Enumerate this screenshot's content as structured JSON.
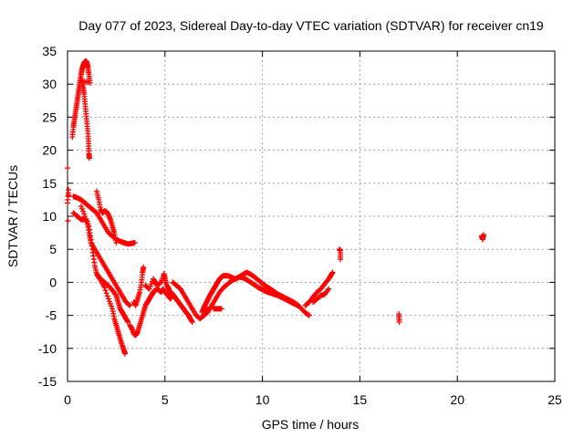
{
  "chart_data": {
    "type": "scatter",
    "title": "Day 077 of 2023, Sidereal Day-to-day VTEC variation (SDTVAR) for receiver cn19",
    "xlabel": "GPS time / hours",
    "ylabel": "SDTVAR / TECUs",
    "xlim": [
      0,
      25
    ],
    "ylim": [
      -15,
      35
    ],
    "xticks": [
      0,
      5,
      10,
      15,
      20,
      25
    ],
    "yticks": [
      -15,
      -10,
      -5,
      0,
      5,
      10,
      15,
      20,
      25,
      30,
      35
    ],
    "grid": true,
    "marker": "+",
    "color": "#ff0000",
    "series": [
      {
        "name": "arc-high-peak",
        "points": [
          [
            0.25,
            22
          ],
          [
            0.3,
            23.5
          ],
          [
            0.35,
            24.5
          ],
          [
            0.4,
            25.5
          ],
          [
            0.45,
            26.5
          ],
          [
            0.5,
            27.5
          ],
          [
            0.55,
            28.5
          ],
          [
            0.6,
            29.5
          ],
          [
            0.65,
            30.5
          ],
          [
            0.7,
            31.5
          ],
          [
            0.75,
            32.3
          ],
          [
            0.8,
            32.8
          ],
          [
            0.85,
            33.2
          ],
          [
            0.9,
            33.4
          ],
          [
            0.95,
            33.5
          ],
          [
            1.0,
            33.2
          ],
          [
            1.05,
            32.5
          ],
          [
            1.1,
            31.5
          ],
          [
            1.15,
            30.2
          ],
          [
            0.75,
            30.5
          ],
          [
            0.8,
            29.5
          ],
          [
            0.85,
            28.5
          ],
          [
            0.9,
            27
          ],
          [
            0.95,
            25.5
          ],
          [
            1.0,
            24
          ],
          [
            1.05,
            22.5
          ],
          [
            1.08,
            21
          ],
          [
            1.1,
            19.5
          ],
          [
            1.12,
            18.8
          ]
        ]
      },
      {
        "name": "early-isolated",
        "points": [
          [
            0.0,
            17.3
          ],
          [
            0.05,
            14
          ],
          [
            0.0,
            12
          ],
          [
            0.02,
            9.3
          ],
          [
            0.05,
            13.2
          ]
        ]
      },
      {
        "name": "arc-a",
        "points": [
          [
            0.3,
            13
          ],
          [
            0.5,
            12.8
          ],
          [
            0.7,
            12.5
          ],
          [
            0.9,
            12
          ],
          [
            1.1,
            11.5
          ],
          [
            1.3,
            11
          ],
          [
            1.5,
            10.5
          ],
          [
            1.7,
            9.5
          ],
          [
            1.9,
            8.5
          ],
          [
            2.1,
            7.5
          ],
          [
            2.3,
            7
          ],
          [
            2.5,
            6.5
          ],
          [
            2.7,
            6.2
          ],
          [
            2.9,
            6
          ],
          [
            3.1,
            5.8
          ],
          [
            3.3,
            5.9
          ],
          [
            3.45,
            6
          ]
        ]
      },
      {
        "name": "arc-b",
        "points": [
          [
            0.3,
            10.5
          ],
          [
            0.5,
            10
          ],
          [
            0.7,
            9.5
          ],
          [
            0.9,
            9.5
          ],
          [
            1.0,
            9.2
          ],
          [
            1.1,
            7.5
          ],
          [
            1.2,
            6
          ],
          [
            1.4,
            5
          ],
          [
            1.6,
            4
          ],
          [
            1.8,
            3
          ],
          [
            2.0,
            2
          ],
          [
            2.2,
            1
          ],
          [
            2.4,
            0
          ],
          [
            2.6,
            -1
          ],
          [
            2.8,
            -2
          ],
          [
            3.0,
            -3
          ],
          [
            3.2,
            -3.5
          ]
        ]
      },
      {
        "name": "arc-c",
        "points": [
          [
            1.5,
            13.8
          ],
          [
            1.6,
            12.5
          ],
          [
            1.7,
            11
          ],
          [
            1.8,
            10.5
          ],
          [
            1.9,
            10.8
          ],
          [
            2.0,
            10.7
          ],
          [
            2.1,
            10.2
          ],
          [
            2.2,
            9.5
          ],
          [
            2.3,
            8.5
          ],
          [
            2.4,
            7.5
          ],
          [
            2.5,
            6
          ]
        ]
      },
      {
        "name": "arc-d",
        "points": [
          [
            0.7,
            11.5
          ],
          [
            0.9,
            10
          ],
          [
            1.1,
            8.5
          ],
          [
            1.2,
            6.5
          ],
          [
            1.3,
            4.5
          ],
          [
            1.4,
            2.5
          ],
          [
            1.5,
            1.2
          ],
          [
            1.7,
            0.3
          ],
          [
            1.9,
            -0.8
          ],
          [
            2.1,
            -2.5
          ],
          [
            2.3,
            -4
          ],
          [
            2.4,
            -5.5
          ],
          [
            2.5,
            -6.5
          ],
          [
            2.6,
            -7.5
          ],
          [
            2.7,
            -8.5
          ],
          [
            2.8,
            -9.5
          ],
          [
            2.9,
            -10.3
          ],
          [
            2.95,
            -10.8
          ]
        ]
      },
      {
        "name": "arc-e",
        "points": [
          [
            1.5,
            1.3
          ],
          [
            1.7,
            0.5
          ],
          [
            1.9,
            0
          ],
          [
            2.1,
            -0.5
          ],
          [
            2.3,
            -1.2
          ],
          [
            2.5,
            -2
          ],
          [
            2.6,
            -3
          ],
          [
            2.7,
            -4
          ],
          [
            2.8,
            -4.5
          ],
          [
            2.9,
            -5
          ],
          [
            3.0,
            -5.5
          ],
          [
            3.1,
            -6
          ]
        ]
      },
      {
        "name": "arc-f",
        "points": [
          [
            3.2,
            -6.5
          ],
          [
            3.3,
            -7
          ],
          [
            3.4,
            -7.8
          ],
          [
            3.5,
            -8
          ],
          [
            3.6,
            -7.5
          ],
          [
            3.7,
            -6.5
          ],
          [
            3.8,
            -5.5
          ],
          [
            3.9,
            -4.5
          ],
          [
            4.0,
            -3.5
          ],
          [
            4.1,
            -3
          ],
          [
            4.2,
            -2.5
          ],
          [
            4.3,
            -2
          ],
          [
            4.4,
            -1.5
          ],
          [
            4.5,
            -1.2
          ],
          [
            4.6,
            -1
          ],
          [
            4.7,
            -1.2
          ],
          [
            4.8,
            -1.5
          ],
          [
            4.9,
            -1
          ],
          [
            5.0,
            -1.5
          ],
          [
            5.1,
            -1.8
          ],
          [
            5.2,
            -2.2
          ],
          [
            5.3,
            -2.5
          ]
        ]
      },
      {
        "name": "arc-f2",
        "points": [
          [
            3.4,
            -3
          ],
          [
            3.5,
            -3.5
          ],
          [
            3.6,
            -2.5
          ],
          [
            3.7,
            -1.5
          ],
          [
            3.8,
            0
          ],
          [
            3.85,
            1.5
          ],
          [
            3.9,
            2.3
          ],
          [
            4.0,
            -0.5
          ],
          [
            4.2,
            -1
          ],
          [
            4.4,
            0.5
          ],
          [
            4.5,
            0
          ],
          [
            4.6,
            -0.5
          ],
          [
            4.8,
            0
          ],
          [
            4.95,
            1.3
          ],
          [
            5.0,
            0.5
          ],
          [
            5.1,
            -0.5
          ],
          [
            5.2,
            -1
          ]
        ]
      },
      {
        "name": "arc-g",
        "points": [
          [
            5.2,
            -1.2
          ],
          [
            5.3,
            -1.5
          ],
          [
            5.4,
            -1.8
          ],
          [
            5.5,
            -2.2
          ],
          [
            5.6,
            -2.6
          ],
          [
            5.7,
            -3
          ],
          [
            5.8,
            -3.4
          ],
          [
            5.9,
            -3.8
          ],
          [
            6.0,
            -4.2
          ],
          [
            6.1,
            -4.6
          ],
          [
            6.2,
            -5
          ],
          [
            6.3,
            -5.5
          ],
          [
            6.4,
            -6
          ]
        ]
      },
      {
        "name": "arc-h",
        "points": [
          [
            5.4,
            0
          ],
          [
            5.6,
            -0.5
          ],
          [
            5.8,
            -1
          ],
          [
            6.0,
            -2
          ],
          [
            6.2,
            -3
          ],
          [
            6.4,
            -4
          ],
          [
            6.6,
            -5
          ],
          [
            6.8,
            -5.5
          ],
          [
            7.0,
            -5
          ],
          [
            7.2,
            -4
          ]
        ]
      },
      {
        "name": "arc-i",
        "points": [
          [
            6.9,
            -4.5
          ],
          [
            7.0,
            -3.8
          ],
          [
            7.1,
            -3.2
          ],
          [
            7.2,
            -2.6
          ],
          [
            7.3,
            -2
          ],
          [
            7.4,
            -1.5
          ],
          [
            7.5,
            -1
          ],
          [
            7.6,
            -0.5
          ],
          [
            7.7,
            0
          ],
          [
            7.8,
            0.5
          ],
          [
            7.9,
            0.8
          ],
          [
            8.0,
            1
          ],
          [
            8.2,
            1
          ],
          [
            8.4,
            0.8
          ],
          [
            8.6,
            0.5
          ],
          [
            8.8,
            0.8
          ],
          [
            9.0,
            1.2
          ],
          [
            9.2,
            1.5
          ],
          [
            9.4,
            1.2
          ],
          [
            9.6,
            0.8
          ],
          [
            9.8,
            0.3
          ],
          [
            10.0,
            -0.2
          ],
          [
            10.2,
            -0.6
          ],
          [
            10.4,
            -1
          ],
          [
            10.6,
            -1.4
          ],
          [
            10.8,
            -1.8
          ],
          [
            11.0,
            -2.1
          ],
          [
            11.2,
            -2.4
          ],
          [
            11.4,
            -2.7
          ],
          [
            11.6,
            -3
          ],
          [
            11.8,
            -3.4
          ],
          [
            12.0,
            -4
          ],
          [
            12.2,
            -4.6
          ],
          [
            12.4,
            -5
          ]
        ]
      },
      {
        "name": "arc-j",
        "points": [
          [
            7.0,
            -5
          ],
          [
            7.2,
            -4.5
          ],
          [
            7.4,
            -3.5
          ],
          [
            7.6,
            -2.5
          ],
          [
            7.8,
            -1.5
          ],
          [
            8.0,
            -0.8
          ],
          [
            8.2,
            -0.3
          ],
          [
            8.4,
            0.2
          ],
          [
            8.6,
            0.5
          ],
          [
            8.8,
            0.8
          ],
          [
            9.0,
            0.7
          ],
          [
            9.2,
            0.4
          ],
          [
            9.4,
            0
          ],
          [
            9.6,
            -0.4
          ],
          [
            9.8,
            -0.8
          ],
          [
            10.0,
            -1.1
          ],
          [
            10.2,
            -1.4
          ],
          [
            10.4,
            -1.6
          ],
          [
            10.6,
            -1.8
          ],
          [
            10.8,
            -2
          ],
          [
            11.0,
            -2.3
          ],
          [
            11.2,
            -2.6
          ],
          [
            11.4,
            -2.9
          ],
          [
            11.6,
            -3.2
          ],
          [
            11.8,
            -3.5
          ]
        ]
      },
      {
        "name": "arc-j2",
        "points": [
          [
            7.5,
            -4
          ],
          [
            7.7,
            -4
          ],
          [
            7.9,
            -4
          ]
        ]
      },
      {
        "name": "arc-k",
        "points": [
          [
            12.2,
            -3.5
          ],
          [
            12.4,
            -3
          ],
          [
            12.6,
            -2.2
          ],
          [
            12.8,
            -1.5
          ],
          [
            13.0,
            -1
          ],
          [
            13.2,
            -0.2
          ],
          [
            13.4,
            0.5
          ],
          [
            13.5,
            1
          ],
          [
            13.6,
            1.5
          ],
          [
            12.6,
            -3
          ],
          [
            12.8,
            -2.5
          ],
          [
            13.0,
            -2
          ],
          [
            13.2,
            -1.8
          ],
          [
            13.4,
            -1
          ]
        ]
      },
      {
        "name": "isolated-14h",
        "points": [
          [
            13.95,
            5
          ],
          [
            14.0,
            4.8
          ],
          [
            14.0,
            3.5
          ]
        ]
      },
      {
        "name": "isolated-17h",
        "points": [
          [
            17.0,
            -4.8
          ],
          [
            17.02,
            -6
          ]
        ]
      },
      {
        "name": "isolated-21h",
        "points": [
          [
            21.25,
            7
          ],
          [
            21.3,
            6.5
          ],
          [
            21.35,
            7.2
          ]
        ]
      }
    ]
  }
}
